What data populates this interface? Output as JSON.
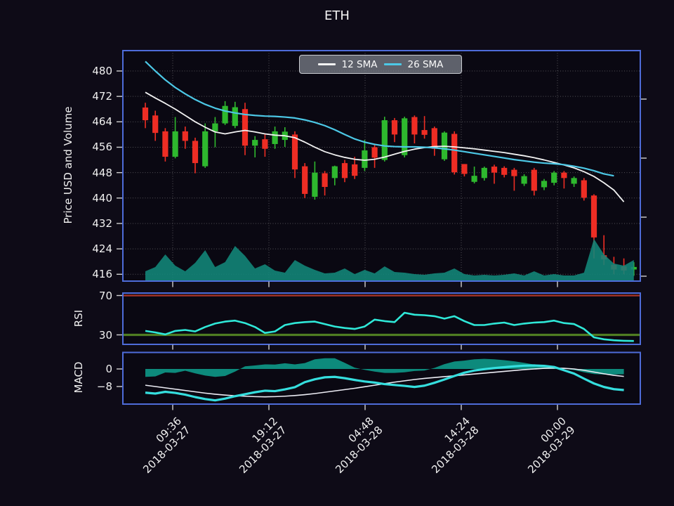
{
  "title": "ETH",
  "colors": {
    "figure_bg": "#0e0b17",
    "panel_bg": "#0a0812",
    "panel_border": "#4e6cd9",
    "grid": "#9a9a9a",
    "candle_up": "#2eb82e",
    "candle_down": "#ee2d24",
    "volume_fill": "#12877a",
    "sma12": "#f2f2f2",
    "sma26": "#4cc8e6",
    "rsi_line": "#2fe8d8",
    "rsi_overbought_line": "#a03226",
    "rsi_oversold_line": "#4f7d22",
    "macd_line": "#35dede",
    "macd_signal": "#ececf4",
    "macd_hist_fill": "#0e9183",
    "text": "#f0f0f0"
  },
  "x_axis": {
    "tick_labels": [
      [
        "09:36",
        "2018-03-27"
      ],
      [
        "19:12",
        "2018-03-27"
      ],
      [
        "04:48",
        "2018-03-28"
      ],
      [
        "14:24",
        "2018-03-28"
      ],
      [
        "00:00",
        "2018-03-29"
      ]
    ]
  },
  "chart_data": [
    {
      "type": "candlestick",
      "title": "ETH",
      "ylabel": "Price USD and Volume",
      "yticks": [
        480,
        472,
        464,
        456,
        448,
        440,
        432,
        424,
        416
      ],
      "ylim": [
        413.5,
        486.5
      ],
      "grid": true,
      "legend": [
        {
          "label": "12 SMA",
          "color": "#f2f2f2"
        },
        {
          "label": "26 SMA",
          "color": "#4cc8e6"
        }
      ],
      "legend_position": "upper center",
      "ohlc": [
        [
          468.5,
          470.0,
          462.0,
          464.5
        ],
        [
          466.0,
          467.5,
          458.0,
          460.5
        ],
        [
          461.0,
          462.0,
          451.5,
          453.0
        ],
        [
          453.0,
          465.5,
          452.5,
          461.0
        ],
        [
          461.0,
          462.5,
          455.5,
          458.0
        ],
        [
          458.0,
          459.0,
          447.8,
          451.0
        ],
        [
          450.0,
          463.5,
          449.5,
          461.0
        ],
        [
          461.0,
          465.5,
          456.0,
          463.5
        ],
        [
          463.5,
          470.5,
          463.0,
          469.0
        ],
        [
          462.7,
          470.3,
          462.0,
          468.6
        ],
        [
          468.0,
          470.0,
          453.5,
          456.5
        ],
        [
          456.5,
          459.5,
          452.8,
          458.3
        ],
        [
          458.5,
          460.0,
          453.0,
          455.5
        ],
        [
          457.0,
          462.5,
          455.5,
          461.0
        ],
        [
          458.3,
          462.3,
          456.1,
          460.9
        ],
        [
          460.0,
          461.0,
          446.3,
          449.0
        ],
        [
          450.0,
          451.0,
          440.0,
          441.3
        ],
        [
          440.4,
          451.5,
          439.5,
          448.0
        ],
        [
          447.8,
          448.5,
          440.8,
          443.5
        ],
        [
          446.3,
          450.2,
          444.0,
          450.0
        ],
        [
          451.0,
          452.0,
          445.0,
          446.3
        ],
        [
          450.6,
          453.0,
          446.0,
          447.0
        ],
        [
          449.5,
          458.3,
          448.5,
          455.0
        ],
        [
          456.0,
          457.0,
          449.5,
          452.7
        ],
        [
          452.0,
          465.6,
          451.5,
          464.5
        ],
        [
          464.5,
          465.2,
          457.6,
          460.0
        ],
        [
          453.5,
          465.6,
          452.8,
          465.1
        ],
        [
          465.5,
          466.0,
          457.2,
          460.0
        ],
        [
          461.4,
          465.8,
          458.7,
          459.9
        ],
        [
          462.0,
          462.5,
          453.3,
          455.5
        ],
        [
          452.2,
          461.0,
          451.7,
          460.6
        ],
        [
          460.2,
          461.0,
          447.4,
          448.1
        ],
        [
          450.7,
          450.7,
          446.8,
          447.6
        ],
        [
          445.1,
          449.9,
          444.6,
          447.0
        ],
        [
          446.3,
          449.9,
          445.5,
          449.5
        ],
        [
          449.9,
          450.5,
          444.5,
          448.0
        ],
        [
          449.5,
          450.0,
          446.5,
          447.3
        ],
        [
          448.9,
          449.5,
          442.3,
          446.9
        ],
        [
          444.5,
          447.5,
          443.8,
          446.9
        ],
        [
          448.9,
          449.5,
          440.8,
          442.3
        ],
        [
          443.4,
          446.0,
          442.5,
          445.4
        ],
        [
          444.8,
          448.5,
          444.0,
          448.0
        ],
        [
          448.0,
          448.5,
          443.0,
          446.3
        ],
        [
          444.5,
          446.8,
          443.5,
          446.3
        ],
        [
          445.6,
          446.3,
          439.2,
          440.1
        ],
        [
          440.8,
          441.2,
          421.0,
          427.6
        ],
        [
          422.0,
          428.3,
          418.9,
          420.7
        ],
        [
          419.0,
          421.5,
          416.0,
          417.5
        ],
        [
          418.5,
          421.0,
          416.0,
          417.2
        ],
        [
          417.5,
          419.8,
          415.5,
          418.3
        ]
      ],
      "volume_relative": [
        14,
        20,
        38,
        22,
        14,
        26,
        44,
        20,
        27,
        50,
        36,
        18,
        24,
        15,
        12,
        30,
        22,
        16,
        11,
        12,
        18,
        10,
        16,
        11,
        21,
        13,
        12,
        10,
        9,
        11,
        12,
        18,
        10,
        8,
        9,
        8,
        9,
        11,
        8,
        14,
        8,
        10,
        8,
        8,
        12,
        60,
        38,
        25,
        22,
        30
      ],
      "sma12": [
        473.3,
        471.5,
        469.8,
        468.0,
        466.0,
        464.0,
        462.3,
        460.8,
        460.2,
        460.8,
        461.3,
        460.8,
        460.2,
        459.8,
        459.6,
        459.0,
        457.6,
        456.0,
        454.6,
        453.6,
        452.8,
        452.2,
        451.9,
        452.2,
        452.9,
        453.8,
        454.7,
        455.4,
        455.9,
        456.2,
        456.3,
        456.1,
        455.8,
        455.5,
        455.1,
        454.7,
        454.3,
        453.8,
        453.3,
        452.7,
        452.0,
        451.2,
        450.4,
        449.5,
        448.3,
        446.8,
        444.8,
        442.5,
        438.8,
        null
      ],
      "sma26": [
        483.0,
        480.0,
        477.2,
        474.8,
        472.8,
        471.0,
        469.5,
        468.3,
        467.4,
        466.8,
        466.3,
        466.0,
        465.8,
        465.7,
        465.5,
        465.2,
        464.6,
        463.8,
        462.8,
        461.5,
        460.0,
        458.6,
        457.6,
        456.9,
        456.4,
        456.2,
        456.1,
        456.1,
        456.0,
        455.8,
        455.5,
        455.1,
        454.6,
        454.1,
        453.6,
        453.1,
        452.6,
        452.1,
        451.7,
        451.3,
        451.0,
        450.8,
        450.5,
        450.0,
        449.4,
        448.6,
        447.6,
        447.0,
        null,
        null
      ]
    },
    {
      "type": "line",
      "ylabel": "RSI",
      "yticks": [
        70,
        30
      ],
      "overbought_level": 70,
      "oversold_level": 30,
      "ylim": [
        18,
        74
      ],
      "values": [
        34,
        32.5,
        30.5,
        34,
        35,
        33.5,
        38,
        41.5,
        43.5,
        44.5,
        42,
        38,
        32,
        33.5,
        40,
        42,
        43,
        43.5,
        41,
        38.5,
        37,
        36,
        38.5,
        45.5,
        44,
        43,
        52.5,
        50.5,
        50,
        49,
        46.5,
        49,
        44,
        40,
        40,
        41.5,
        42.5,
        40,
        41.5,
        42.5,
        43,
        44.5,
        42,
        41,
        36,
        27.5,
        25.5,
        24.5,
        24,
        23.8
      ]
    },
    {
      "type": "line+area",
      "ylabel": "MACD",
      "yticks": [
        0,
        -8
      ],
      "ylim": [
        -16,
        7.5
      ],
      "macd": [
        -10.8,
        -11.2,
        -10.4,
        -10.9,
        -11.7,
        -12.8,
        -13.7,
        -14.3,
        -13.5,
        -12.4,
        -11.5,
        -10.6,
        -9.9,
        -10.1,
        -9.3,
        -8.3,
        -6.0,
        -4.7,
        -3.8,
        -3.6,
        -4.2,
        -5.0,
        -5.7,
        -6.2,
        -6.9,
        -7.3,
        -7.7,
        -8.2,
        -7.6,
        -6.3,
        -4.8,
        -3.2,
        -1.7,
        -0.7,
        -0.1,
        0.4,
        0.8,
        1.2,
        1.5,
        1.6,
        1.4,
        0.9,
        -0.6,
        -2.1,
        -4.4,
        -6.6,
        -8.2,
        -9.2,
        -9.6,
        null
      ],
      "signal": [
        -7.4,
        -8.0,
        -8.6,
        -9.2,
        -9.8,
        -10.4,
        -11.0,
        -11.5,
        -11.9,
        -12.2,
        -12.4,
        -12.6,
        -12.7,
        -12.6,
        -12.4,
        -12.1,
        -11.7,
        -11.2,
        -10.6,
        -10.0,
        -9.4,
        -8.8,
        -8.1,
        -7.4,
        -6.7,
        -6.0,
        -5.4,
        -4.8,
        -4.3,
        -3.9,
        -3.5,
        -3.1,
        -2.7,
        -2.3,
        -1.9,
        -1.5,
        -1.1,
        -0.7,
        -0.3,
        0.0,
        0.3,
        0.4,
        0.3,
        0.0,
        -0.6,
        -1.4,
        -2.2,
        -2.9,
        -3.4,
        null
      ],
      "histogram": [
        -3.6,
        -3.4,
        -1.6,
        -1.8,
        -0.8,
        -2.0,
        -3.0,
        -3.6,
        -3.2,
        -1.2,
        1.2,
        1.6,
        2.1,
        2.0,
        2.6,
        2.1,
        2.7,
        4.4,
        4.9,
        4.9,
        2.8,
        0.6,
        -0.4,
        -1.2,
        -1.8,
        -1.8,
        -1.5,
        -0.9,
        -0.7,
        0.5,
        2.2,
        3.4,
        3.8,
        4.4,
        4.6,
        4.4,
        4.0,
        3.5,
        2.8,
        2.0,
        1.2,
        0.6,
        0.2,
        -0.5,
        -1.5,
        -2.3,
        -2.5,
        -2.5,
        -2.4,
        null
      ]
    }
  ]
}
